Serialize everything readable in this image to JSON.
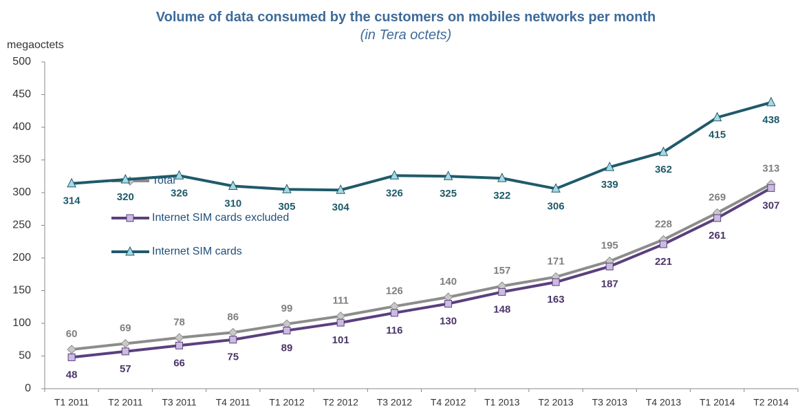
{
  "chart_data": {
    "type": "line",
    "title": "Volume of data consumed by the customers on mobiles networks per month",
    "subtitle": "(in Tera octets)",
    "y_label": "megaoctets",
    "categories": [
      "T1 2011",
      "T2 2011",
      "T3 2011",
      "T4 2011",
      "T1 2012",
      "T2 2012",
      "T3 2012",
      "T4 2012",
      "T1 2013",
      "T2 2013",
      "T3 2013",
      "T4 2013",
      "T1 2014",
      "T2 2014"
    ],
    "series": [
      {
        "name": "Total",
        "color": "#8c8c8c",
        "marker_color": "#c8c8c8",
        "label_color": "#7f7f7f",
        "values": [
          60,
          69,
          78,
          86,
          99,
          111,
          126,
          140,
          157,
          171,
          195,
          228,
          269,
          313
        ]
      },
      {
        "name": "Internet SIM cards excluded",
        "color": "#5b3f7f",
        "marker_color": "#cbbbe0",
        "label_color": "#4b3468",
        "values": [
          48,
          57,
          66,
          75,
          89,
          101,
          116,
          130,
          148,
          163,
          187,
          221,
          261,
          307
        ]
      },
      {
        "name": "Internet SIM cards",
        "color": "#1f5a6a",
        "marker_color": "#a6d9e6",
        "label_color": "#1f5a6a",
        "values": [
          314,
          320,
          326,
          310,
          305,
          304,
          326,
          325,
          322,
          306,
          339,
          362,
          415,
          438
        ]
      }
    ],
    "ylim": [
      0,
      500
    ],
    "yticks": [
      0,
      50,
      100,
      150,
      200,
      250,
      300,
      350,
      400,
      450,
      500
    ],
    "grid": false
  }
}
